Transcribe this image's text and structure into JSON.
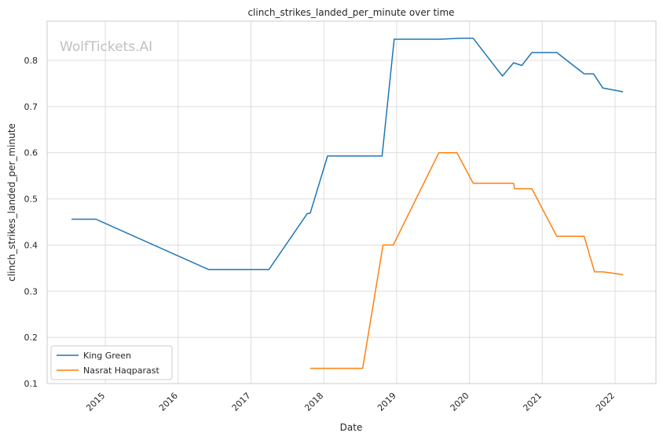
{
  "chart_data": {
    "type": "line",
    "title": "clinch_strikes_landed_per_minute over time",
    "xlabel": "Date",
    "ylabel": "clinch_strikes_landed_per_minute",
    "watermark": "WolfTickets.AI",
    "x_ticks": [
      "2015",
      "2016",
      "2017",
      "2018",
      "2019",
      "2020",
      "2021",
      "2022"
    ],
    "y_ticks": [
      "0.1",
      "0.2",
      "0.3",
      "0.4",
      "0.5",
      "0.6",
      "0.7",
      "0.8"
    ],
    "xlim": [
      "2014-03-15",
      "2022-07-25"
    ],
    "ylim": [
      0.1,
      0.885
    ],
    "grid": true,
    "legend_position": "lower-left",
    "series": [
      {
        "name": "King Green",
        "color": "#1f77b4",
        "points": [
          [
            "2014-07-15",
            0.456
          ],
          [
            "2014-11-15",
            0.456
          ],
          [
            "2016-06-01",
            0.347
          ],
          [
            "2017-04-01",
            0.347
          ],
          [
            "2017-10-10",
            0.468
          ],
          [
            "2017-10-25",
            0.469
          ],
          [
            "2018-01-20",
            0.593
          ],
          [
            "2018-10-20",
            0.593
          ],
          [
            "2018-12-20",
            0.846
          ],
          [
            "2019-08-10",
            0.846
          ],
          [
            "2019-11-20",
            0.848
          ],
          [
            "2020-01-20",
            0.848
          ],
          [
            "2020-06-15",
            0.766
          ],
          [
            "2020-08-10",
            0.795
          ],
          [
            "2020-09-20",
            0.789
          ],
          [
            "2020-11-10",
            0.817
          ],
          [
            "2021-03-15",
            0.817
          ],
          [
            "2021-07-30",
            0.771
          ],
          [
            "2021-09-15",
            0.771
          ],
          [
            "2021-11-01",
            0.74
          ],
          [
            "2022-02-10",
            0.732
          ]
        ]
      },
      {
        "name": "Nasrat Haqparast",
        "color": "#ff7f0e",
        "points": [
          [
            "2017-10-25",
            0.133
          ],
          [
            "2018-07-15",
            0.133
          ],
          [
            "2018-10-25",
            0.4
          ],
          [
            "2018-12-15",
            0.4
          ],
          [
            "2019-08-01",
            0.6
          ],
          [
            "2019-10-30",
            0.6
          ],
          [
            "2020-01-20",
            0.534
          ],
          [
            "2020-08-10",
            0.534
          ],
          [
            "2020-08-15",
            0.522
          ],
          [
            "2020-11-10",
            0.522
          ],
          [
            "2021-03-15",
            0.419
          ],
          [
            "2021-07-30",
            0.419
          ],
          [
            "2021-09-20",
            0.342
          ],
          [
            "2021-11-01",
            0.342
          ],
          [
            "2022-02-10",
            0.336
          ]
        ]
      }
    ]
  }
}
